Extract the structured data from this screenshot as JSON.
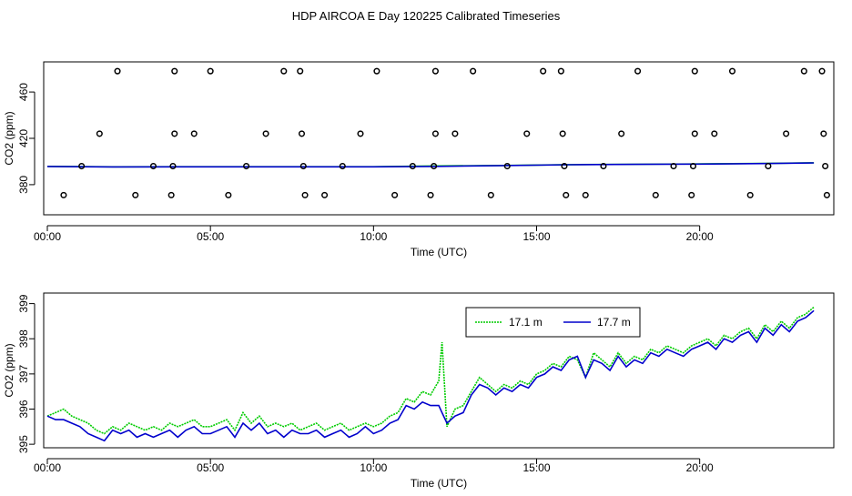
{
  "title": "HDP AIRCOA E  Day 120225  Calibrated Timeseries",
  "colors": {
    "series_green": "#00cc00",
    "series_blue": "#0000cc",
    "points": "#000000"
  },
  "chart_data": [
    {
      "type": "scatter",
      "xlabel": "Time (UTC)",
      "ylabel": "CO2 (ppm)",
      "xlim": [
        0,
        24
      ],
      "ylim": [
        354,
        486
      ],
      "x_ticks": [
        0,
        5,
        10,
        15,
        20
      ],
      "x_tick_labels": [
        "00:00",
        "05:00",
        "10:00",
        "15:00",
        "20:00"
      ],
      "y_ticks": [
        380,
        420,
        460
      ],
      "y_tick_labels": [
        "380",
        "420",
        "460"
      ],
      "grid": false,
      "reference_points": [
        {
          "x": 0.5,
          "y": 371
        },
        {
          "x": 1.05,
          "y": 396
        },
        {
          "x": 1.6,
          "y": 424
        },
        {
          "x": 2.15,
          "y": 478
        },
        {
          "x": 2.7,
          "y": 371
        },
        {
          "x": 3.25,
          "y": 396
        },
        {
          "x": 3.8,
          "y": 371
        },
        {
          "x": 3.85,
          "y": 396
        },
        {
          "x": 3.9,
          "y": 424
        },
        {
          "x": 3.9,
          "y": 478
        },
        {
          "x": 4.5,
          "y": 424
        },
        {
          "x": 5.0,
          "y": 478
        },
        {
          "x": 5.55,
          "y": 371
        },
        {
          "x": 6.1,
          "y": 396
        },
        {
          "x": 6.7,
          "y": 424
        },
        {
          "x": 7.25,
          "y": 478
        },
        {
          "x": 7.75,
          "y": 478
        },
        {
          "x": 7.8,
          "y": 424
        },
        {
          "x": 7.85,
          "y": 396
        },
        {
          "x": 7.9,
          "y": 371
        },
        {
          "x": 8.5,
          "y": 371
        },
        {
          "x": 9.05,
          "y": 396
        },
        {
          "x": 9.6,
          "y": 424
        },
        {
          "x": 10.1,
          "y": 478
        },
        {
          "x": 10.65,
          "y": 371
        },
        {
          "x": 11.2,
          "y": 396
        },
        {
          "x": 11.75,
          "y": 371
        },
        {
          "x": 11.85,
          "y": 396
        },
        {
          "x": 11.9,
          "y": 424
        },
        {
          "x": 11.9,
          "y": 478
        },
        {
          "x": 12.5,
          "y": 424
        },
        {
          "x": 13.05,
          "y": 478
        },
        {
          "x": 13.6,
          "y": 371
        },
        {
          "x": 14.1,
          "y": 396
        },
        {
          "x": 14.7,
          "y": 424
        },
        {
          "x": 15.2,
          "y": 478
        },
        {
          "x": 15.75,
          "y": 478
        },
        {
          "x": 15.8,
          "y": 424
        },
        {
          "x": 15.85,
          "y": 396
        },
        {
          "x": 15.9,
          "y": 371
        },
        {
          "x": 16.5,
          "y": 371
        },
        {
          "x": 17.05,
          "y": 396
        },
        {
          "x": 17.6,
          "y": 424
        },
        {
          "x": 18.1,
          "y": 478
        },
        {
          "x": 18.65,
          "y": 371
        },
        {
          "x": 19.2,
          "y": 396
        },
        {
          "x": 19.75,
          "y": 371
        },
        {
          "x": 19.8,
          "y": 396
        },
        {
          "x": 19.85,
          "y": 424
        },
        {
          "x": 19.85,
          "y": 478
        },
        {
          "x": 20.45,
          "y": 424
        },
        {
          "x": 21.0,
          "y": 478
        },
        {
          "x": 21.55,
          "y": 371
        },
        {
          "x": 22.1,
          "y": 396
        },
        {
          "x": 22.65,
          "y": 424
        },
        {
          "x": 23.2,
          "y": 478
        },
        {
          "x": 23.75,
          "y": 478
        },
        {
          "x": 23.8,
          "y": 424
        },
        {
          "x": 23.85,
          "y": 396
        },
        {
          "x": 23.9,
          "y": 371
        }
      ],
      "series": [
        {
          "x": [
            0,
            2,
            4,
            6,
            8,
            10,
            12,
            14,
            16,
            18,
            20,
            22,
            23.5
          ],
          "values": [
            395.8,
            395.4,
            395.5,
            395.5,
            395.5,
            395.5,
            396.2,
            396.6,
            397.3,
            397.6,
            397.9,
            398.3,
            398.9
          ]
        },
        {
          "x": [
            0,
            2,
            4,
            6,
            8,
            10,
            12,
            14,
            16,
            18,
            20,
            22,
            23.5
          ],
          "values": [
            395.7,
            395.3,
            395.4,
            395.4,
            395.4,
            395.4,
            395.8,
            396.5,
            397.2,
            397.5,
            397.8,
            398.2,
            398.8
          ]
        }
      ]
    },
    {
      "type": "line",
      "xlabel": "Time (UTC)",
      "ylabel": "CO2 (ppm)",
      "xlim": [
        0,
        24
      ],
      "ylim": [
        394.9,
        399.3
      ],
      "x_ticks": [
        0,
        5,
        10,
        15,
        20
      ],
      "x_tick_labels": [
        "00:00",
        "05:00",
        "10:00",
        "15:00",
        "20:00"
      ],
      "y_ticks": [
        395,
        396,
        397,
        398,
        399
      ],
      "y_tick_labels": [
        "395",
        "396",
        "397",
        "398",
        "399"
      ],
      "grid": false,
      "legend_position": "top-right",
      "series": [
        {
          "name": "17.1 m",
          "color": "#00cc00",
          "style": "dotted",
          "x": [
            0,
            0.25,
            0.5,
            0.75,
            1,
            1.25,
            1.5,
            1.75,
            2,
            2.25,
            2.5,
            2.75,
            3,
            3.25,
            3.5,
            3.75,
            4,
            4.25,
            4.5,
            4.75,
            5,
            5.25,
            5.5,
            5.75,
            6,
            6.25,
            6.5,
            6.75,
            7,
            7.25,
            7.5,
            7.75,
            8,
            8.25,
            8.5,
            8.75,
            9,
            9.25,
            9.5,
            9.75,
            10,
            10.25,
            10.5,
            10.75,
            11,
            11.25,
            11.5,
            11.75,
            12,
            12.1,
            12.25,
            12.5,
            12.75,
            13,
            13.25,
            13.5,
            13.75,
            14,
            14.25,
            14.5,
            14.75,
            15,
            15.25,
            15.5,
            15.75,
            16,
            16.25,
            16.5,
            16.75,
            17,
            17.25,
            17.5,
            17.75,
            18,
            18.25,
            18.5,
            18.75,
            19,
            19.25,
            19.5,
            19.75,
            20,
            20.25,
            20.5,
            20.75,
            21,
            21.25,
            21.5,
            21.75,
            22,
            22.25,
            22.5,
            22.75,
            23,
            23.25,
            23.5
          ],
          "values": [
            395.8,
            395.9,
            396.0,
            395.8,
            395.7,
            395.6,
            395.4,
            395.3,
            395.5,
            395.4,
            395.6,
            395.5,
            395.4,
            395.5,
            395.4,
            395.6,
            395.5,
            395.6,
            395.7,
            395.5,
            395.5,
            395.6,
            395.7,
            395.4,
            395.9,
            395.6,
            395.8,
            395.5,
            395.6,
            395.5,
            395.6,
            395.4,
            395.5,
            395.6,
            395.4,
            395.5,
            395.6,
            395.4,
            395.5,
            395.6,
            395.5,
            395.6,
            395.8,
            395.9,
            396.3,
            396.2,
            396.5,
            396.4,
            396.8,
            397.9,
            395.5,
            396.0,
            396.1,
            396.5,
            396.9,
            396.7,
            396.5,
            396.7,
            396.6,
            396.8,
            396.7,
            397.0,
            397.1,
            397.3,
            397.2,
            397.5,
            397.4,
            396.9,
            397.6,
            397.4,
            397.2,
            397.6,
            397.3,
            397.5,
            397.4,
            397.7,
            397.6,
            397.8,
            397.7,
            397.6,
            397.8,
            397.9,
            398.0,
            397.8,
            398.1,
            398.0,
            398.2,
            398.3,
            398.0,
            398.4,
            398.2,
            398.5,
            398.3,
            398.6,
            398.7,
            398.9
          ],
          "note": ""
        },
        {
          "name": "17.7 m",
          "color": "#0000cc",
          "style": "solid",
          "x": [
            0,
            0.25,
            0.5,
            0.75,
            1,
            1.25,
            1.5,
            1.75,
            2,
            2.25,
            2.5,
            2.75,
            3,
            3.25,
            3.5,
            3.75,
            4,
            4.25,
            4.5,
            4.75,
            5,
            5.25,
            5.5,
            5.75,
            6,
            6.25,
            6.5,
            6.75,
            7,
            7.25,
            7.5,
            7.75,
            8,
            8.25,
            8.5,
            8.75,
            9,
            9.25,
            9.5,
            9.75,
            10,
            10.25,
            10.5,
            10.75,
            11,
            11.25,
            11.5,
            11.75,
            12,
            12.1,
            12.25,
            12.5,
            12.75,
            13,
            13.25,
            13.5,
            13.75,
            14,
            14.25,
            14.5,
            14.75,
            15,
            15.25,
            15.5,
            15.75,
            16,
            16.25,
            16.5,
            16.75,
            17,
            17.25,
            17.5,
            17.75,
            18,
            18.25,
            18.5,
            18.75,
            19,
            19.25,
            19.5,
            19.75,
            20,
            20.25,
            20.5,
            20.75,
            21,
            21.25,
            21.5,
            21.75,
            22,
            22.25,
            22.5,
            22.75,
            23,
            23.25,
            23.5
          ],
          "values": [
            395.8,
            395.7,
            395.7,
            395.6,
            395.5,
            395.3,
            395.2,
            395.1,
            395.4,
            395.3,
            395.4,
            395.2,
            395.3,
            395.2,
            395.3,
            395.4,
            395.2,
            395.4,
            395.5,
            395.3,
            395.3,
            395.4,
            395.5,
            395.2,
            395.6,
            395.4,
            395.6,
            395.3,
            395.4,
            395.2,
            395.4,
            395.3,
            395.3,
            395.4,
            395.2,
            395.3,
            395.4,
            395.2,
            395.3,
            395.5,
            395.3,
            395.4,
            395.6,
            395.7,
            396.1,
            396.0,
            396.2,
            396.1,
            396.1,
            395.9,
            395.6,
            395.8,
            395.9,
            396.4,
            396.7,
            396.6,
            396.4,
            396.6,
            396.5,
            396.7,
            396.6,
            396.9,
            397.0,
            397.2,
            397.1,
            397.4,
            397.5,
            396.9,
            397.4,
            397.3,
            397.1,
            397.5,
            397.2,
            397.4,
            397.3,
            397.6,
            397.5,
            397.7,
            397.6,
            397.5,
            397.7,
            397.8,
            397.9,
            397.7,
            398.0,
            397.9,
            398.1,
            398.2,
            397.9,
            398.3,
            398.1,
            398.4,
            398.2,
            398.5,
            398.6,
            398.8
          ],
          "note": ""
        }
      ]
    }
  ]
}
